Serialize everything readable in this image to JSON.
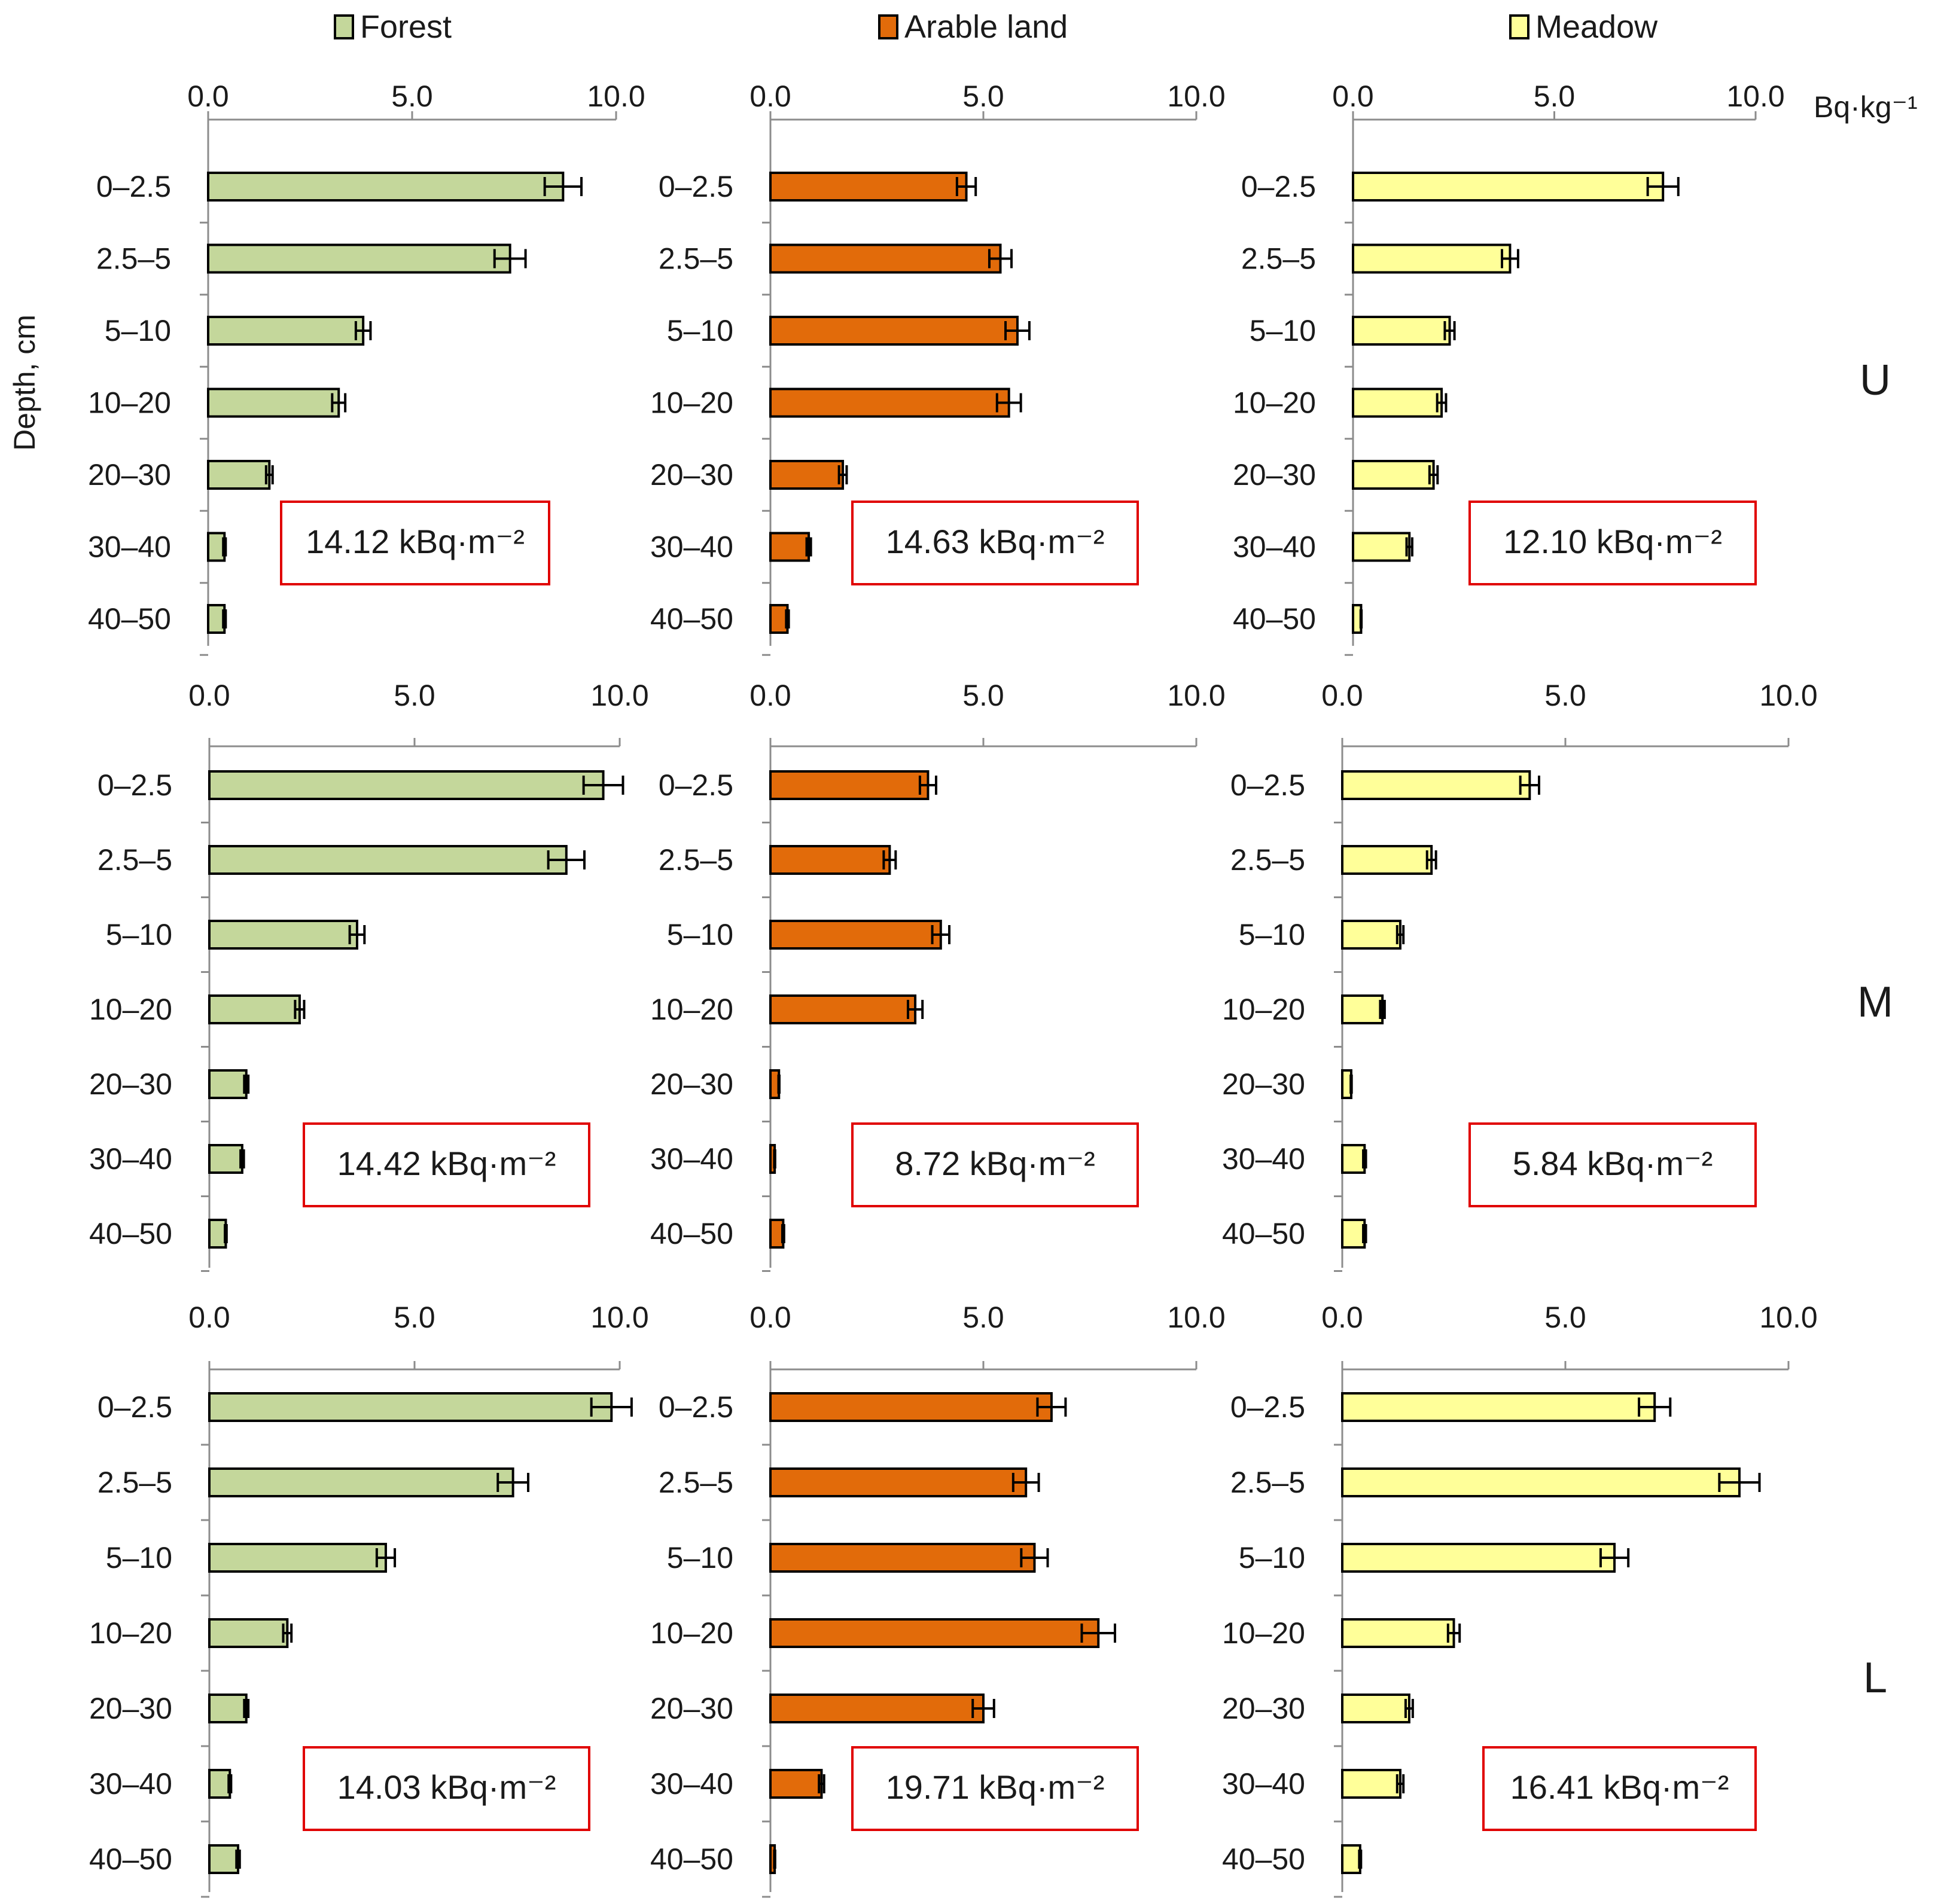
{
  "legend": [
    {
      "label": "Forest",
      "color": "#c4d79b"
    },
    {
      "label": "Arable land",
      "color": "#e26b0a"
    },
    {
      "label": "Meadow",
      "color": "#ffff99"
    }
  ],
  "unit_label": "Bq·kg⁻¹",
  "y_axis_label": "Depth, cm",
  "chart_data": {
    "type": "bar",
    "orientation": "horizontal",
    "xlim": [
      0,
      10
    ],
    "x_ticks": [
      "0.0",
      "5.0",
      "10.0"
    ],
    "x_axis_position": "top",
    "categories": [
      "0–2.5",
      "2.5–5",
      "5–10",
      "10–20",
      "20–30",
      "30–40",
      "40–50"
    ],
    "grid": false,
    "legend_position": "top",
    "rows": [
      {
        "label": "U",
        "panels": [
          {
            "series": "Forest",
            "values": [
              8.7,
              7.4,
              3.8,
              3.2,
              1.5,
              0.4,
              0.4
            ],
            "errors": [
              0.45,
              0.38,
              0.18,
              0.16,
              0.08,
              0.03,
              0.03
            ],
            "total": "14.12 kBq·m⁻²"
          },
          {
            "series": "Arable land",
            "values": [
              4.6,
              5.4,
              5.8,
              5.6,
              1.7,
              0.9,
              0.4
            ],
            "errors": [
              0.22,
              0.26,
              0.28,
              0.28,
              0.09,
              0.05,
              0.03
            ],
            "total": "14.63 kBq·m⁻²"
          },
          {
            "series": "Meadow",
            "values": [
              7.7,
              3.9,
              2.4,
              2.2,
              2.0,
              1.4,
              0.2
            ],
            "errors": [
              0.38,
              0.2,
              0.12,
              0.11,
              0.1,
              0.07,
              0.01
            ],
            "total": "12.10 kBq·m⁻²"
          }
        ]
      },
      {
        "label": "M",
        "panels": [
          {
            "series": "Forest",
            "values": [
              9.6,
              8.7,
              3.6,
              2.2,
              0.9,
              0.8,
              0.4
            ],
            "errors": [
              0.48,
              0.44,
              0.18,
              0.11,
              0.05,
              0.04,
              0.02
            ],
            "total": "14.42 kBq·m⁻²"
          },
          {
            "series": "Arable land",
            "values": [
              3.7,
              2.8,
              4.0,
              3.4,
              0.2,
              0.1,
              0.3
            ],
            "errors": [
              0.19,
              0.14,
              0.2,
              0.17,
              0.01,
              0.01,
              0.02
            ],
            "total": "8.72 kBq·m⁻²"
          },
          {
            "series": "Meadow",
            "values": [
              4.2,
              2.0,
              1.3,
              0.9,
              0.2,
              0.5,
              0.5
            ],
            "errors": [
              0.21,
              0.1,
              0.07,
              0.05,
              0.01,
              0.03,
              0.03
            ],
            "total": "5.84 kBq·m⁻²"
          }
        ]
      },
      {
        "label": "L",
        "panels": [
          {
            "series": "Forest",
            "values": [
              9.8,
              7.4,
              4.3,
              1.9,
              0.9,
              0.5,
              0.7
            ],
            "errors": [
              0.49,
              0.37,
              0.22,
              0.1,
              0.05,
              0.03,
              0.04
            ],
            "total": "14.03 kBq·m⁻²"
          },
          {
            "series": "Arable land",
            "values": [
              6.6,
              6.0,
              6.2,
              7.7,
              5.0,
              1.2,
              0.1
            ],
            "errors": [
              0.33,
              0.3,
              0.31,
              0.39,
              0.25,
              0.06,
              0.01
            ],
            "total": "19.71 kBq·m⁻²"
          },
          {
            "series": "Meadow",
            "values": [
              7.0,
              8.9,
              6.1,
              2.5,
              1.5,
              1.3,
              0.4
            ],
            "errors": [
              0.35,
              0.45,
              0.31,
              0.13,
              0.08,
              0.07,
              0.02
            ],
            "total": "16.41 kBq·m⁻²"
          }
        ]
      }
    ]
  }
}
